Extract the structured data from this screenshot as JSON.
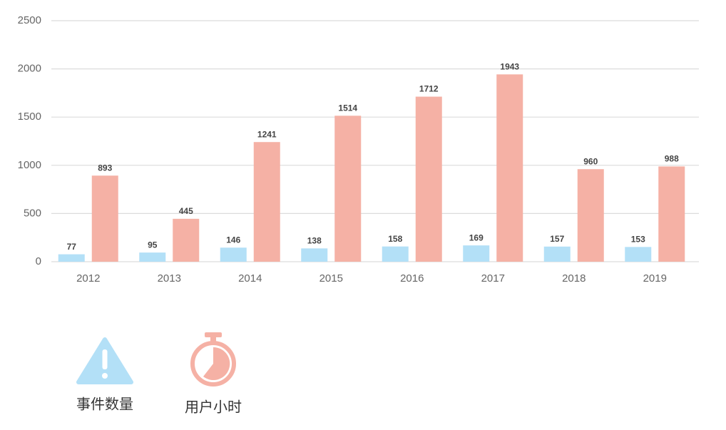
{
  "chart_data": {
    "type": "bar",
    "categories": [
      "2012",
      "2013",
      "2014",
      "2015",
      "2016",
      "2017",
      "2018",
      "2019"
    ],
    "series": [
      {
        "name": "事件数量",
        "color": "#b3e0f7",
        "values": [
          77,
          95,
          146,
          138,
          158,
          169,
          157,
          153
        ]
      },
      {
        "name": "用户小时",
        "color": "#f5b1a5",
        "values": [
          893,
          445,
          1241,
          1514,
          1712,
          1943,
          960,
          988
        ]
      }
    ],
    "ylim": [
      0,
      2500
    ],
    "yticks": [
      0,
      500,
      1000,
      1500,
      2000,
      2500
    ],
    "grid": true
  }
}
